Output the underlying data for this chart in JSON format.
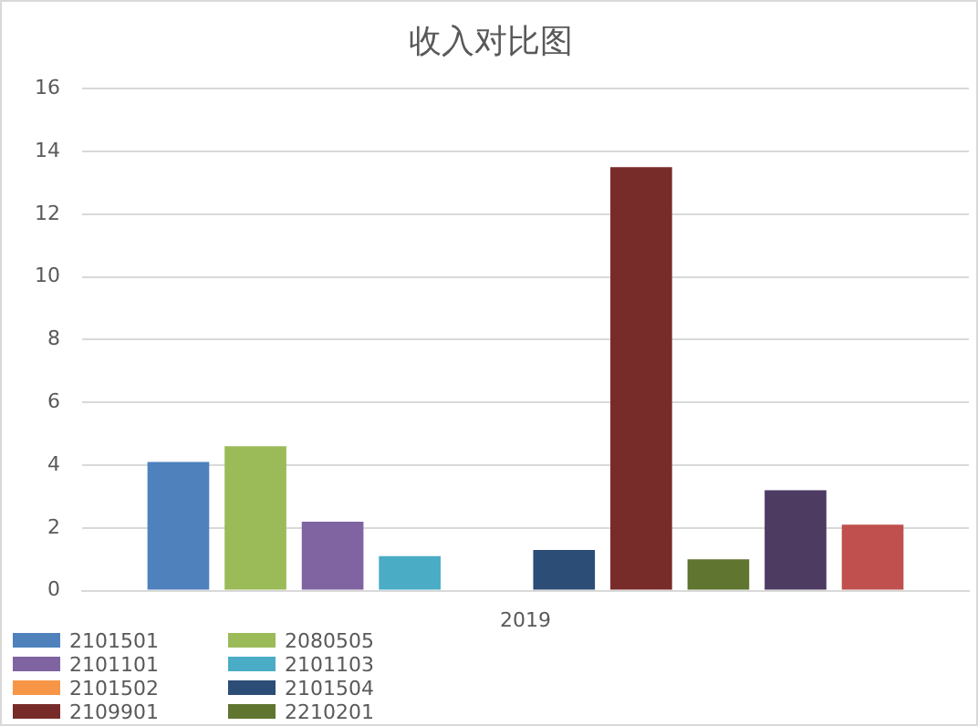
{
  "chart_data": {
    "type": "bar",
    "title": "收入对比图",
    "categories": [
      "2019"
    ],
    "series": [
      {
        "name": "2101501",
        "color": "#4f81bd",
        "values": [
          4.1
        ]
      },
      {
        "name": "2080505",
        "color": "#9bbb59",
        "values": [
          4.6
        ]
      },
      {
        "name": "2101101",
        "color": "#8064a2",
        "values": [
          2.2
        ]
      },
      {
        "name": "2101103",
        "color": "#4bacc6",
        "values": [
          1.1
        ]
      },
      {
        "name": "2101502",
        "color": "#f79646",
        "values": [
          0
        ]
      },
      {
        "name": "2101504",
        "color": "#2c4d75",
        "values": [
          1.3
        ]
      },
      {
        "name": "2109901",
        "color": "#772c2a",
        "values": [
          13.5
        ]
      },
      {
        "name": "2210201",
        "color": "#5f7530",
        "values": [
          1.0
        ]
      },
      {
        "color": "#4d3b62",
        "values": [
          3.2
        ]
      },
      {
        "color": "#c0504d",
        "values": [
          2.1
        ]
      }
    ],
    "ylim": [
      0,
      16
    ],
    "yticks": [
      0,
      2,
      4,
      6,
      8,
      10,
      12,
      14,
      16
    ],
    "grid": "y",
    "legend": "bottom left"
  }
}
